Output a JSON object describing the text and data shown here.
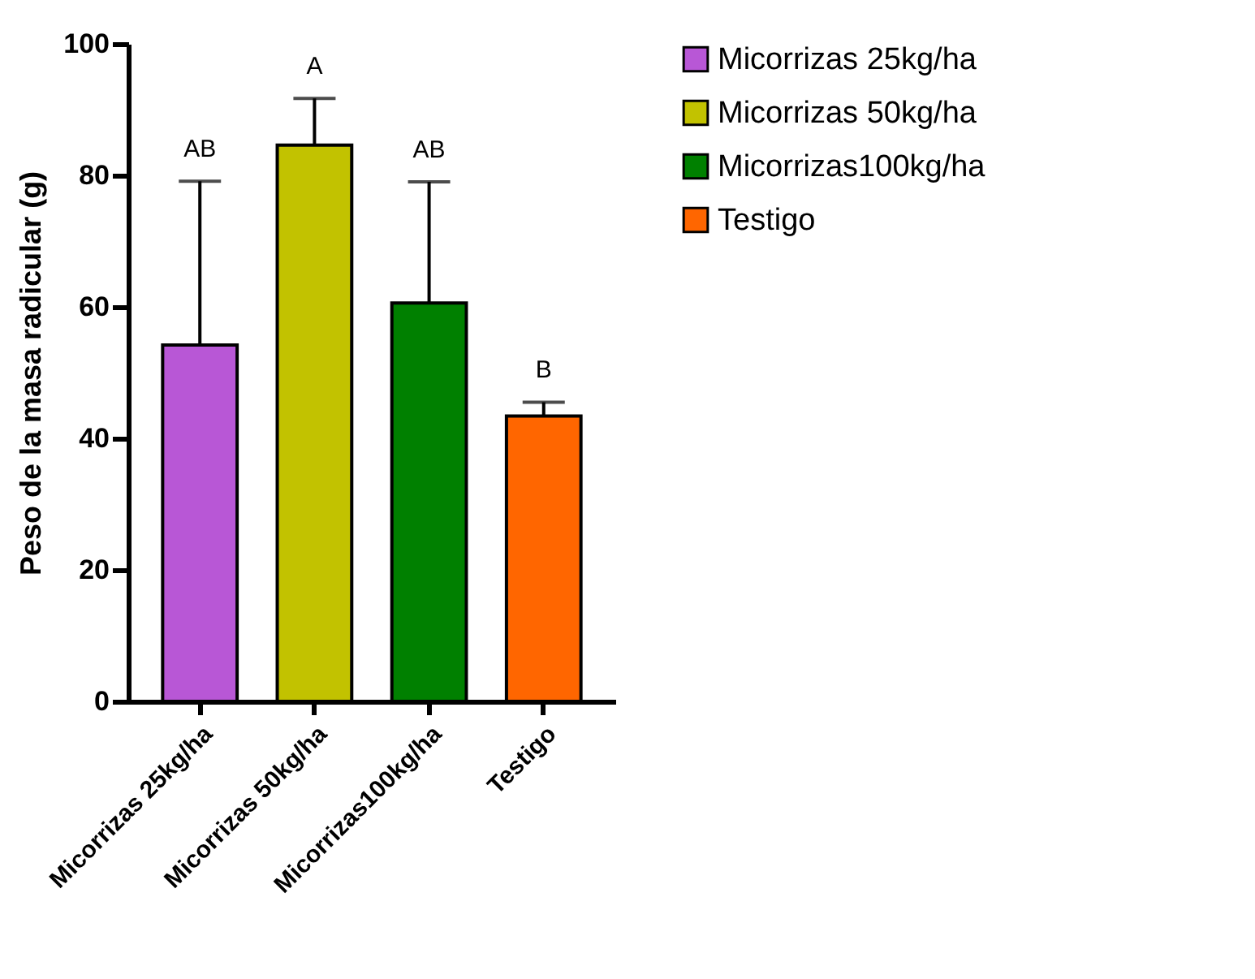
{
  "chart_data": {
    "type": "bar",
    "ylabel": "Peso de la masa radicular (g)",
    "categories": [
      "Micorrizas 25kg/ha",
      "Micorrizas 50kg/ha",
      "Micorrizas100kg/ha",
      "Testigo"
    ],
    "series": [
      {
        "name": "Micorrizas 25kg/ha",
        "color": "#b857d6",
        "values": [
          54.2,
          null,
          null,
          null
        ],
        "errors": [
          [
            54.2,
            79.1
          ],
          null,
          null,
          null
        ]
      },
      {
        "name": "Micorrizas 50kg/ha",
        "color": "#c2c200",
        "values": [
          null,
          84.6,
          null,
          null
        ],
        "errors": [
          null,
          [
            84.6,
            91.7
          ],
          null,
          null
        ]
      },
      {
        "name": "Micorrizas100kg/ha",
        "color": "#008000",
        "values": [
          null,
          null,
          60.6,
          null
        ],
        "errors": [
          null,
          null,
          [
            60.6,
            79.0
          ],
          null
        ]
      },
      {
        "name": "Testigo",
        "color": "#ff6600",
        "values": [
          null,
          null,
          null,
          43.4
        ],
        "errors": [
          null,
          null,
          null,
          [
            43.4,
            45.5
          ]
        ]
      }
    ],
    "annotations": [
      {
        "text": "AB",
        "x": "Micorrizas 25kg/ha",
        "y": 79.1
      },
      {
        "text": "A",
        "x": "Micorrizas 50kg/ha",
        "y": 91.7
      },
      {
        "text": "AB",
        "x": "Micorrizas100kg/ha",
        "y": 79.0
      },
      {
        "text": "B",
        "x": "Testigo",
        "y": 45.5
      }
    ],
    "ylim": [
      0,
      100
    ],
    "yticks": [
      0,
      20,
      40,
      60,
      80,
      100
    ],
    "legend": "top right"
  }
}
